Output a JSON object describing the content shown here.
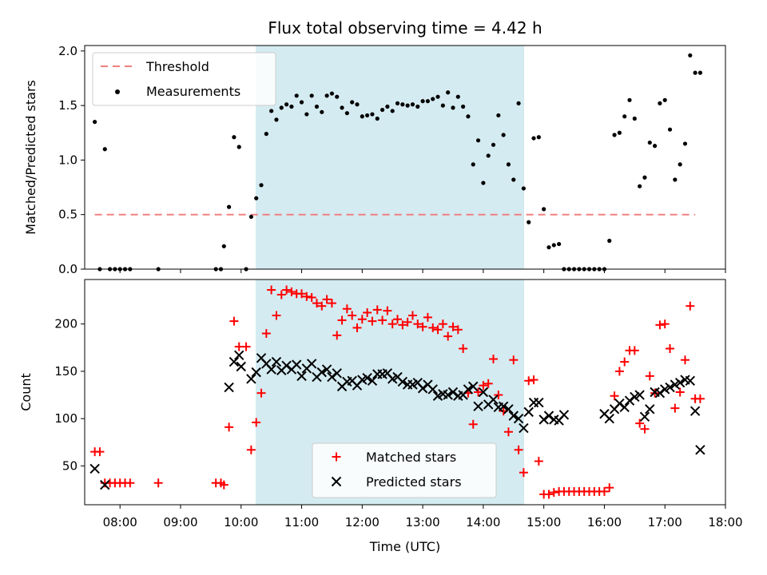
{
  "chart_data": [
    {
      "type": "scatter",
      "title": "Flux total observing time = 4.42 h",
      "xlabel": "",
      "ylabel": "Matched/Predicted stars",
      "xlim": [
        "07:25",
        "18:00"
      ],
      "ylim": [
        0,
        2.05
      ],
      "yticks": [
        0.0,
        0.5,
        1.0,
        1.5,
        2.0
      ],
      "ytick_labels": [
        "0.0",
        "0.5",
        "1.0",
        "1.5",
        "2.0"
      ],
      "shaded_span": {
        "start": "10:15",
        "end": "14:40",
        "color": "#d4ebf1"
      },
      "legend_position": "upper-left",
      "threshold": {
        "name": "Threshold",
        "y": 0.5,
        "x_start": "07:35",
        "x_end": "17:30",
        "color": "#f08080"
      },
      "measurements": {
        "name": "Measurements",
        "color": "#000000",
        "x": [
          "07:35",
          "07:40",
          "07:45",
          "07:50",
          "07:55",
          "08:00",
          "08:05",
          "08:10",
          "08:38",
          "09:35",
          "09:40",
          "09:43",
          "09:48",
          "09:53",
          "09:58",
          "10:05",
          "10:10",
          "10:15",
          "10:20",
          "10:25",
          "10:30",
          "10:35",
          "10:40",
          "10:45",
          "10:50",
          "10:55",
          "11:00",
          "11:05",
          "11:10",
          "11:15",
          "11:20",
          "11:25",
          "11:30",
          "11:35",
          "11:40",
          "11:45",
          "11:50",
          "11:55",
          "12:00",
          "12:05",
          "12:10",
          "12:15",
          "12:20",
          "12:25",
          "12:30",
          "12:35",
          "12:40",
          "12:45",
          "12:50",
          "12:55",
          "13:00",
          "13:05",
          "13:10",
          "13:15",
          "13:20",
          "13:25",
          "13:30",
          "13:35",
          "13:40",
          "13:45",
          "13:50",
          "13:55",
          "14:00",
          "14:05",
          "14:10",
          "14:15",
          "14:20",
          "14:25",
          "14:30",
          "14:35",
          "14:40",
          "14:45",
          "14:50",
          "14:55",
          "15:00",
          "15:05",
          "15:10",
          "15:15",
          "15:20",
          "15:25",
          "15:30",
          "15:35",
          "15:40",
          "15:45",
          "15:50",
          "15:55",
          "16:00",
          "16:05",
          "16:10",
          "16:15",
          "16:20",
          "16:25",
          "16:30",
          "16:35",
          "16:40",
          "16:45",
          "16:50",
          "16:55",
          "17:00",
          "17:05",
          "17:10",
          "17:15",
          "17:20",
          "17:25",
          "17:30",
          "17:35"
        ],
        "y": [
          1.35,
          0.0,
          1.1,
          0.0,
          0.0,
          0.0,
          0.0,
          0.0,
          0.0,
          0.0,
          0.0,
          0.21,
          0.57,
          1.21,
          1.12,
          0.0,
          0.48,
          0.65,
          0.77,
          1.24,
          1.45,
          1.37,
          1.48,
          1.51,
          1.49,
          1.59,
          1.53,
          1.42,
          1.59,
          1.49,
          1.44,
          1.59,
          1.61,
          1.58,
          1.48,
          1.43,
          1.53,
          1.51,
          1.4,
          1.41,
          1.42,
          1.38,
          1.46,
          1.49,
          1.45,
          1.52,
          1.51,
          1.5,
          1.51,
          1.49,
          1.54,
          1.54,
          1.56,
          1.58,
          1.5,
          1.62,
          1.48,
          1.58,
          1.49,
          1.4,
          0.96,
          1.18,
          0.79,
          1.04,
          1.14,
          1.41,
          1.23,
          0.96,
          0.82,
          1.52,
          0.74,
          0.43,
          1.2,
          1.21,
          0.55,
          0.2,
          0.22,
          0.23,
          0.0,
          0.0,
          0.0,
          0.0,
          0.0,
          0.0,
          0.0,
          0.0,
          0.0,
          0.26,
          1.23,
          1.25,
          1.4,
          1.55,
          1.38,
          0.76,
          0.84,
          1.16,
          1.13,
          1.52,
          1.55,
          1.28,
          0.82,
          0.96,
          1.15,
          1.96,
          1.8,
          1.8
        ]
      }
    },
    {
      "type": "scatter",
      "title": "",
      "xlabel": "Time (UTC)",
      "ylabel": "Count",
      "xlim": [
        "07:25",
        "18:00"
      ],
      "ylim": [
        9,
        247
      ],
      "yticks": [
        50,
        100,
        150,
        200
      ],
      "ytick_labels": [
        "50",
        "100",
        "150",
        "200"
      ],
      "xticks": [
        "08:00",
        "09:00",
        "10:00",
        "11:00",
        "12:00",
        "13:00",
        "14:00",
        "15:00",
        "16:00",
        "17:00",
        "18:00"
      ],
      "shaded_span": {
        "start": "10:15",
        "end": "14:40",
        "color": "#d4ebf1"
      },
      "legend_position": "lower-center",
      "series": [
        {
          "name": "Matched stars",
          "marker": "plus",
          "color": "#ff0000",
          "x": [
            "07:35",
            "07:40",
            "07:45",
            "07:50",
            "07:55",
            "08:00",
            "08:05",
            "08:10",
            "08:38",
            "09:35",
            "09:40",
            "09:43",
            "09:48",
            "09:53",
            "09:58",
            "10:05",
            "10:10",
            "10:15",
            "10:20",
            "10:25",
            "10:30",
            "10:35",
            "10:40",
            "10:45",
            "10:50",
            "10:55",
            "11:00",
            "11:05",
            "11:10",
            "11:15",
            "11:20",
            "11:25",
            "11:30",
            "11:35",
            "11:40",
            "11:45",
            "11:50",
            "11:55",
            "12:00",
            "12:05",
            "12:10",
            "12:15",
            "12:20",
            "12:25",
            "12:30",
            "12:35",
            "12:40",
            "12:45",
            "12:50",
            "12:55",
            "13:00",
            "13:05",
            "13:10",
            "13:15",
            "13:20",
            "13:25",
            "13:30",
            "13:35",
            "13:40",
            "13:45",
            "13:50",
            "13:55",
            "14:00",
            "14:05",
            "14:10",
            "14:15",
            "14:20",
            "14:25",
            "14:30",
            "14:35",
            "14:40",
            "14:45",
            "14:50",
            "14:55",
            "15:00",
            "15:05",
            "15:10",
            "15:15",
            "15:20",
            "15:25",
            "15:30",
            "15:35",
            "15:40",
            "15:45",
            "15:50",
            "15:55",
            "16:00",
            "16:05",
            "16:10",
            "16:15",
            "16:20",
            "16:25",
            "16:30",
            "16:35",
            "16:40",
            "16:45",
            "16:50",
            "16:55",
            "17:00",
            "17:05",
            "17:10",
            "17:15",
            "17:20",
            "17:25",
            "17:30",
            "17:35"
          ],
          "y": [
            65,
            65,
            32,
            32,
            32,
            32,
            32,
            32,
            32,
            32,
            32,
            30,
            91,
            203,
            176,
            176,
            67,
            96,
            127,
            190,
            236,
            209,
            231,
            236,
            234,
            232,
            232,
            229,
            228,
            222,
            219,
            226,
            222,
            188,
            204,
            216,
            209,
            196,
            205,
            212,
            203,
            215,
            204,
            214,
            200,
            205,
            199,
            202,
            209,
            200,
            197,
            207,
            196,
            194,
            200,
            187,
            197,
            194,
            174,
            127,
            94,
            128,
            135,
            137,
            163,
            125,
            108,
            86,
            162,
            67,
            43,
            140,
            141,
            55,
            20,
            20,
            22,
            23,
            23,
            23,
            23,
            23,
            23,
            23,
            23,
            23,
            23,
            27,
            124,
            150,
            160,
            172,
            172,
            95,
            89,
            145,
            127,
            199,
            200,
            174,
            111,
            128,
            162,
            219,
            121,
            121
          ]
        },
        {
          "name": "Predicted stars",
          "marker": "x",
          "color": "#000000",
          "x": [
            "07:35",
            "07:45",
            "09:48",
            "09:53",
            "09:58",
            "10:00",
            "10:10",
            "10:15",
            "10:20",
            "10:25",
            "10:30",
            "10:35",
            "10:40",
            "10:45",
            "10:50",
            "10:55",
            "11:00",
            "11:05",
            "11:10",
            "11:15",
            "11:20",
            "11:25",
            "11:30",
            "11:35",
            "11:40",
            "11:45",
            "11:50",
            "11:55",
            "12:00",
            "12:05",
            "12:10",
            "12:15",
            "12:20",
            "12:25",
            "12:30",
            "12:35",
            "12:40",
            "12:45",
            "12:50",
            "12:55",
            "13:00",
            "13:05",
            "13:10",
            "13:15",
            "13:20",
            "13:25",
            "13:30",
            "13:35",
            "13:40",
            "13:45",
            "13:50",
            "13:55",
            "14:00",
            "14:05",
            "14:10",
            "14:15",
            "14:20",
            "14:25",
            "14:30",
            "14:35",
            "14:40",
            "14:45",
            "14:50",
            "14:55",
            "15:00",
            "15:05",
            "15:10",
            "15:15",
            "15:20",
            "16:00",
            "16:05",
            "16:10",
            "16:15",
            "16:20",
            "16:25",
            "16:30",
            "16:35",
            "16:40",
            "16:45",
            "16:50",
            "16:55",
            "17:00",
            "17:05",
            "17:10",
            "17:15",
            "17:20",
            "17:25",
            "17:30",
            "17:35"
          ],
          "y": [
            47,
            30,
            133,
            160,
            167,
            155,
            142,
            149,
            164,
            158,
            152,
            160,
            151,
            156,
            152,
            157,
            145,
            153,
            158,
            144,
            149,
            152,
            144,
            148,
            134,
            139,
            140,
            135,
            141,
            143,
            140,
            147,
            147,
            148,
            142,
            144,
            139,
            136,
            136,
            138,
            132,
            136,
            131,
            124,
            126,
            125,
            128,
            124,
            125,
            131,
            134,
            113,
            128,
            115,
            120,
            112,
            113,
            110,
            103,
            100,
            90,
            107,
            117,
            117,
            99,
            103,
            99,
            98,
            104,
            105,
            100,
            110,
            116,
            112,
            119,
            123,
            125,
            102,
            110,
            128,
            127,
            131,
            133,
            136,
            138,
            141,
            140,
            108,
            67
          ]
        }
      ]
    }
  ]
}
